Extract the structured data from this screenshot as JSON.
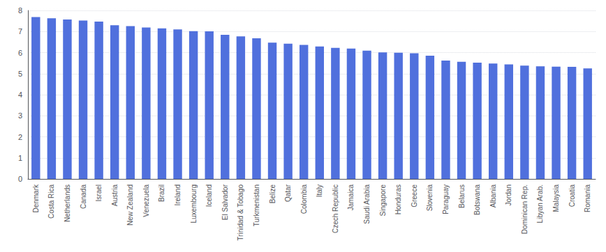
{
  "chart_data": {
    "type": "bar",
    "categories": [
      "Denmark",
      "Costa Rica",
      "Netherlands",
      "Canada",
      "Israel",
      "Austria",
      "New Zealand",
      "Venezuela",
      "Brazil",
      "Ireland",
      "Luxembourg",
      "Iceland",
      "El Salvador",
      "Trinidad & Tobago",
      "Turkmenistan",
      "Belize",
      "Qatar",
      "Colombia",
      "Italy",
      "Czech Republic",
      "Jamaica",
      "Saudi Arabia",
      "Singapore",
      "Honduras",
      "Greece",
      "Slovenia",
      "Paraguay",
      "Belarus",
      "Botswana",
      "Albania",
      "Jordan",
      "Dominican Rep.",
      "Libyan Arab.",
      "Malaysia",
      "Croatia",
      "Romania"
    ],
    "values": [
      7.69,
      7.63,
      7.57,
      7.52,
      7.47,
      7.3,
      7.26,
      7.19,
      7.15,
      7.1,
      7.02,
      7.01,
      6.84,
      6.77,
      6.68,
      6.47,
      6.42,
      6.36,
      6.29,
      6.22,
      6.19,
      6.09,
      6.01,
      5.99,
      5.97,
      5.85,
      5.62,
      5.56,
      5.52,
      5.48,
      5.44,
      5.38,
      5.35,
      5.33,
      5.32,
      5.25
    ],
    "ylim": [
      0,
      8
    ],
    "yticks": [
      0,
      1,
      2,
      3,
      4,
      5,
      6,
      7,
      8
    ],
    "grid": true
  }
}
